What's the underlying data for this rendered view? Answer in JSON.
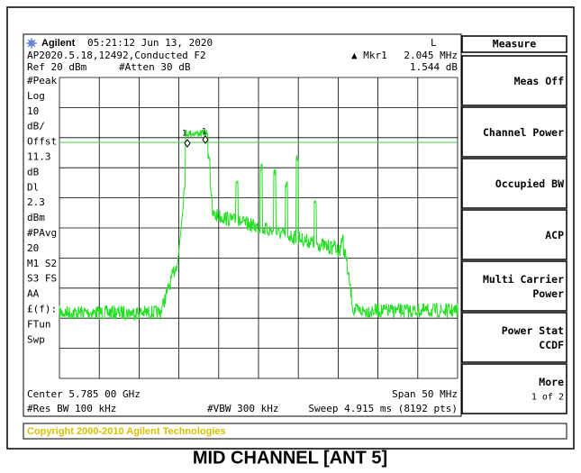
{
  "header": {
    "brand": "Agilent",
    "time": "05:21:12  Jun 13, 2020",
    "mode": "L",
    "file": "AP2020.5.18,12492,Conducted F2",
    "marker_label": "▲ Mkr1",
    "marker_freq": "2.045 MHz",
    "ref": "Ref 20 dBm",
    "atten": "#Atten 30 dB",
    "marker_value": "1.544 dB"
  },
  "left_labels": [
    "#Peak",
    "Log",
    "10",
    "dB/",
    "Offst",
    "11.3",
    "dB",
    "Dl",
    "2.3",
    "dBm",
    "#PAvg",
    "20",
    "M1  S2",
    "S3  FS",
    "AA",
    "£(f):",
    "FTun",
    "Swp"
  ],
  "footer": {
    "center": "Center 5.785 00 GHz",
    "span": "Span 50 MHz",
    "rbw": "#Res BW 100 kHz",
    "vbw": "#VBW 300 kHz",
    "sweep": "Sweep 4.915 ms (8192 pts)"
  },
  "markers": [
    "1",
    "1"
  ],
  "menu": {
    "title": "Measure",
    "keys": [
      [
        "Meas Off"
      ],
      [
        "Channel Power"
      ],
      [
        "Occupied BW"
      ],
      [
        "ACP"
      ],
      [
        "Multi Carrier",
        "Power"
      ],
      [
        "Power Stat",
        "CCDF"
      ],
      [
        "More",
        "1 of 2"
      ]
    ]
  },
  "copyright": "Copyright 2000-2010 Agilent Technologies",
  "caption": "MID CHANNEL [ANT 5]"
}
